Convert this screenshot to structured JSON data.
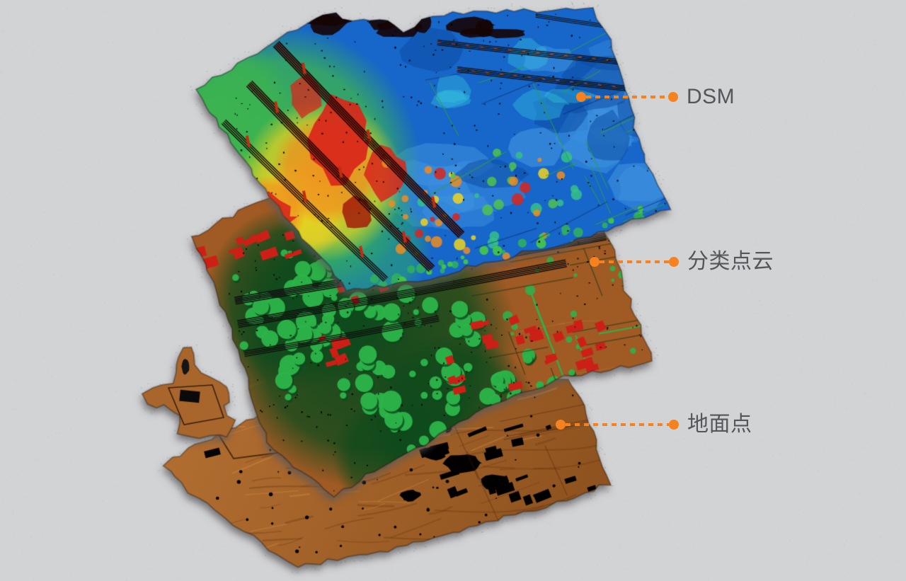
{
  "background_color": "#d2d3d5",
  "accent_color": "#f5821f",
  "label_text_color": "#54565a",
  "figure": {
    "name": "lidar-point-cloud-layer-stack",
    "layers": [
      {
        "id": "dsm",
        "label": "DSM",
        "content": "rainbow elevation surface model tile",
        "palette": {
          "base": "#1766c9",
          "light": "#3f93e0",
          "dark": "#0a4aa0",
          "veg": "#3db54e",
          "mid": "#f0d41f",
          "high": "#ef8c1e",
          "peak": "#d8261b",
          "powerline": "#170404",
          "pylon": "#c22d12"
        }
      },
      {
        "id": "classified-point-cloud",
        "label": "分类点云",
        "content": "classified point cloud tile: brown ground, green vegetation, red buildings, black powerlines",
        "palette": {
          "ground": "#a05a24",
          "ground_light": "#c07a36",
          "vegetation": "#2db44a",
          "veg_dark": "#0d4a1c",
          "building": "#cc2017",
          "powerline": "#0d0d0d"
        }
      },
      {
        "id": "ground-points",
        "label": "地面点",
        "content": "bare-earth ground points tile: copper terrain with black voids where buildings were removed",
        "palette": {
          "ground": "#a8662c",
          "ground_light": "#b97434",
          "shade": "#6e3b12",
          "holes": "#000000"
        }
      }
    ]
  }
}
